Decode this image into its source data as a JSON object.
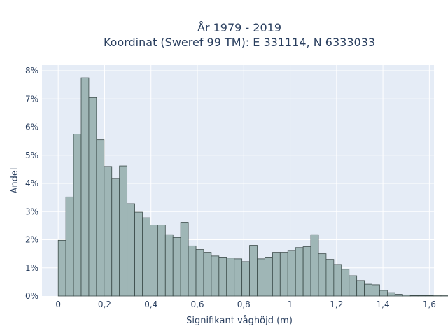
{
  "chart_data": {
    "type": "bar",
    "title_line1": "År 1979 - 2019",
    "title_line2": "Koordinat (Sweref 99 TM): E 331114, N 6333033",
    "xlabel": "Signifikant våghöjd (m)",
    "ylabel": "Andel",
    "xlim": [
      -0.07,
      1.62
    ],
    "ylim": [
      0,
      8.2
    ],
    "x_ticks": [
      {
        "value": 0,
        "label": "0"
      },
      {
        "value": 0.2,
        "label": "0,2"
      },
      {
        "value": 0.4,
        "label": "0,4"
      },
      {
        "value": 0.6,
        "label": "0,6"
      },
      {
        "value": 0.8,
        "label": "0,8"
      },
      {
        "value": 1.0,
        "label": "1"
      },
      {
        "value": 1.2,
        "label": "1,2"
      },
      {
        "value": 1.4,
        "label": "1,4"
      },
      {
        "value": 1.6,
        "label": "1,6"
      }
    ],
    "y_ticks": [
      {
        "value": 0,
        "label": "0%"
      },
      {
        "value": 1,
        "label": "1%"
      },
      {
        "value": 2,
        "label": "2%"
      },
      {
        "value": 3,
        "label": "3%"
      },
      {
        "value": 4,
        "label": "4%"
      },
      {
        "value": 5,
        "label": "5%"
      },
      {
        "value": 6,
        "label": "6%"
      },
      {
        "value": 7,
        "label": "7%"
      },
      {
        "value": 8,
        "label": "8%"
      }
    ],
    "bin_start": 0.0,
    "bin_width": 0.033,
    "values": [
      1.98,
      3.52,
      5.75,
      7.75,
      7.05,
      5.55,
      4.6,
      4.18,
      4.62,
      3.28,
      2.98,
      2.78,
      2.52,
      2.52,
      2.18,
      2.08,
      2.62,
      1.78,
      1.65,
      1.55,
      1.42,
      1.38,
      1.35,
      1.32,
      1.22,
      1.8,
      1.32,
      1.38,
      1.55,
      1.55,
      1.62,
      1.72,
      1.75,
      2.18,
      1.5,
      1.3,
      1.12,
      0.95,
      0.72,
      0.55,
      0.42,
      0.4,
      0.2,
      0.12,
      0.06,
      0.04,
      0.02,
      0.02,
      0.02,
      0.01,
      0.01
    ],
    "grid": true,
    "legend": "none",
    "colors": {
      "plot_bg": "#e5ecf6",
      "grid": "#ffffff",
      "bar_fill": "#9fb6b6",
      "bar_stroke": "#3a4a48",
      "text": "#2a3f5f"
    }
  }
}
